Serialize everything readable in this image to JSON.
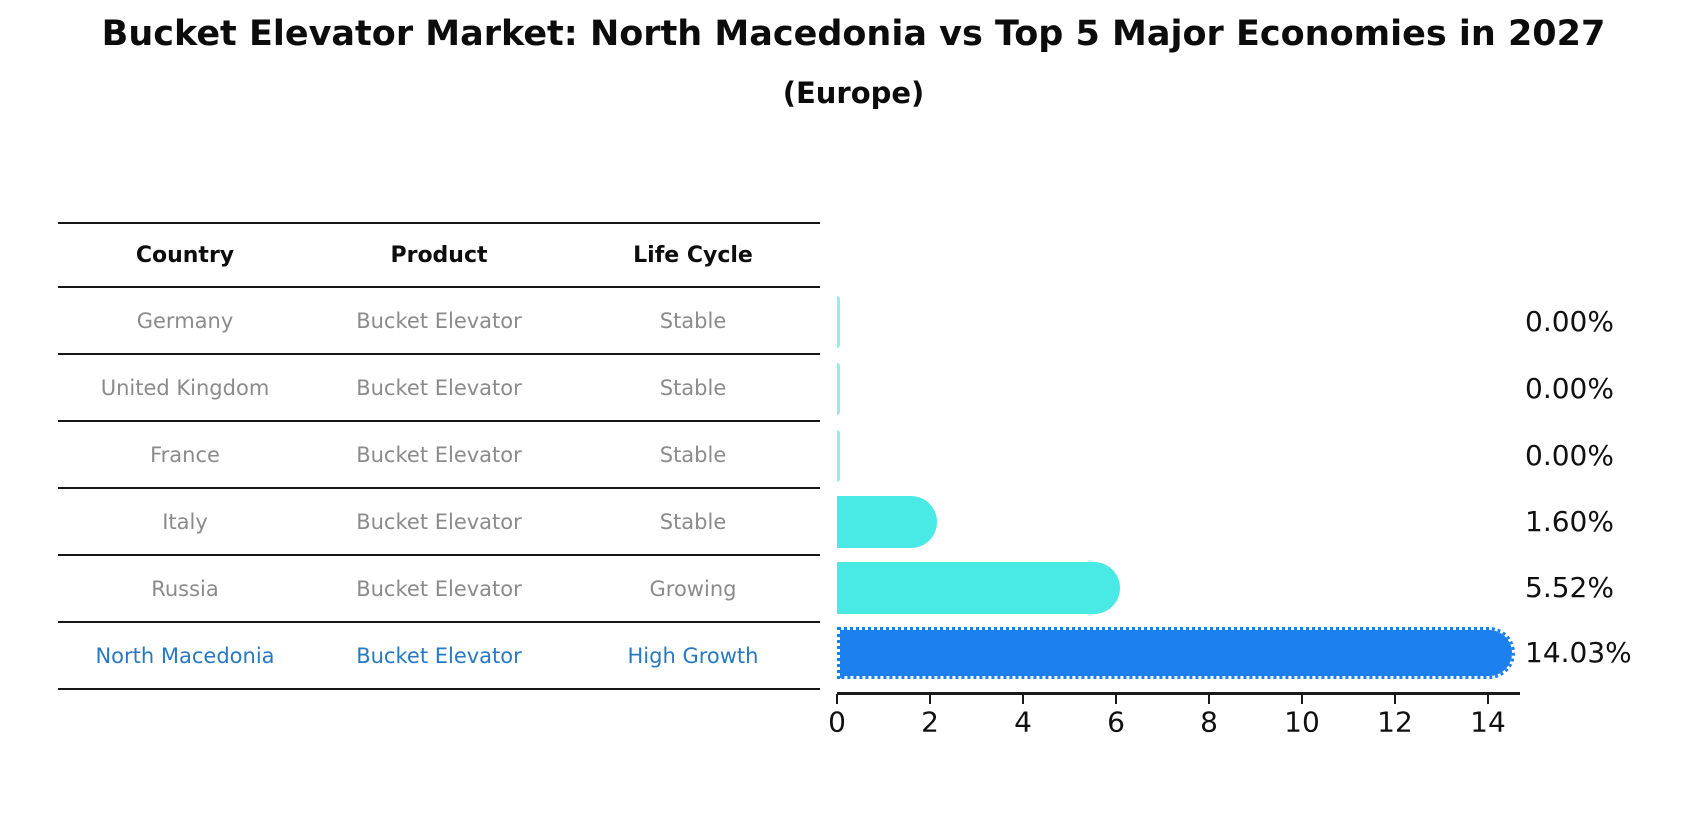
{
  "title": "Bucket Elevator Market: North Macedonia vs Top 5 Major Economies in 2027",
  "subtitle": "(Europe)",
  "table": {
    "headers": [
      "Country",
      "Product",
      "Life Cycle"
    ],
    "rows": [
      {
        "country": "Germany",
        "product": "Bucket Elevator",
        "life_cycle": "Stable"
      },
      {
        "country": "United Kingdom",
        "product": "Bucket Elevator",
        "life_cycle": "Stable"
      },
      {
        "country": "France",
        "product": "Bucket Elevator",
        "life_cycle": "Stable"
      },
      {
        "country": "Italy",
        "product": "Bucket Elevator",
        "life_cycle": "Stable"
      },
      {
        "country": "Russia",
        "product": "Bucket Elevator",
        "life_cycle": "Growing"
      },
      {
        "country": "North Macedonia",
        "product": "Bucket Elevator",
        "life_cycle": "High Growth"
      }
    ]
  },
  "chart_data": {
    "type": "bar",
    "orientation": "horizontal",
    "title": "Bucket Elevator Market: North Macedonia vs Top 5 Major Economies in 2027",
    "subtitle": "(Europe)",
    "categories": [
      "Germany",
      "United Kingdom",
      "France",
      "Italy",
      "Russia",
      "North Macedonia"
    ],
    "values": [
      0.0,
      0.0,
      0.0,
      1.6,
      5.52,
      14.03
    ],
    "value_labels": [
      "0.00%",
      "0.00%",
      "0.00%",
      "1.60%",
      "5.52%",
      "14.03%"
    ],
    "x_ticks": [
      0,
      2,
      4,
      6,
      8,
      10,
      12,
      14
    ],
    "xlim": [
      0,
      14.7
    ],
    "grid": false,
    "legend": "none",
    "highlight_index": 5,
    "colors": {
      "bar_default": "#49e9e6",
      "bar_highlight": "#1b80ee",
      "row_text_muted": "#8b8b8b",
      "row_text_highlight": "#2779c4"
    }
  }
}
